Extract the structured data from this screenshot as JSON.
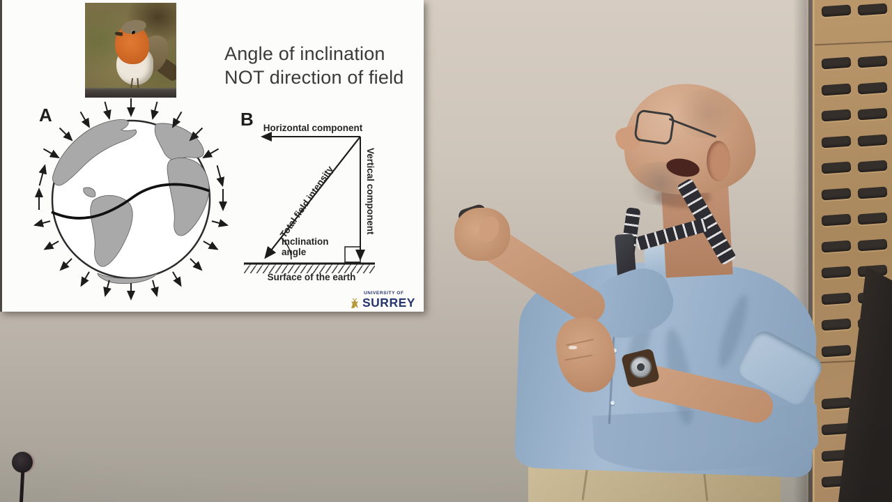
{
  "slide": {
    "title": "Angle of inclination NOT direction of field",
    "label_a": "A",
    "label_b": "B",
    "diagram": {
      "horizontal": "Horizontal component",
      "vertical": "Vertical component",
      "total": "Total field intensity",
      "inclination_word1": "Inclination",
      "inclination_word2": "angle",
      "surface": "Surface of the earth"
    },
    "logo": {
      "small": "UNIVERSITY OF",
      "large": "SURREY"
    }
  },
  "colors": {
    "slide_text": "#3a3a3a",
    "logo_navy": "#27356e",
    "logo_gold": "#b79a3e",
    "shirt_blue": "#9db6cf",
    "wall_beige": "#cdc4b9",
    "panel_wood": "#b08d63",
    "trouser_khaki": "#c4b28d"
  }
}
